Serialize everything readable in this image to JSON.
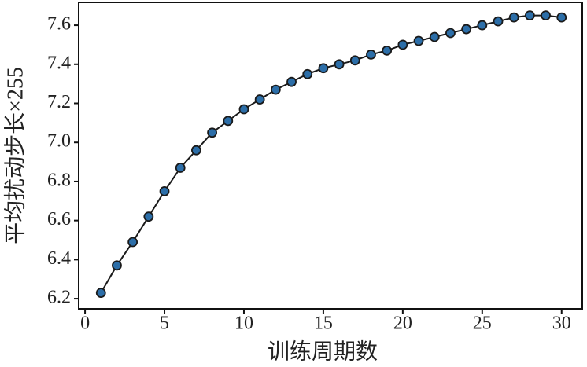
{
  "chart_data": {
    "type": "line",
    "xlabel": "训练周期数",
    "ylabel": "平均扰动步长×255",
    "x": [
      1,
      2,
      3,
      4,
      5,
      6,
      7,
      8,
      9,
      10,
      11,
      12,
      13,
      14,
      15,
      16,
      17,
      18,
      19,
      20,
      21,
      22,
      23,
      24,
      25,
      26,
      27,
      28,
      29,
      30
    ],
    "series": [
      {
        "color": "#2c6ea8",
        "line_color": "#1a1a1a",
        "values": [
          6.23,
          6.37,
          6.49,
          6.62,
          6.75,
          6.87,
          6.96,
          7.05,
          7.11,
          7.17,
          7.22,
          7.27,
          7.31,
          7.35,
          7.38,
          7.4,
          7.42,
          7.45,
          7.47,
          7.5,
          7.52,
          7.54,
          7.56,
          7.58,
          7.6,
          7.62,
          7.64,
          7.65,
          7.65,
          7.64
        ]
      }
    ],
    "xlim": [
      -0.4,
      31.3
    ],
    "ylim": [
      6.148,
      7.717
    ],
    "xticks": [
      0,
      5,
      10,
      15,
      20,
      25,
      30
    ],
    "yticks": [
      6.2,
      6.4,
      6.6,
      6.8,
      {
        "value": 7,
        "label": "7.0"
      },
      7.2,
      7.4,
      7.6
    ]
  }
}
